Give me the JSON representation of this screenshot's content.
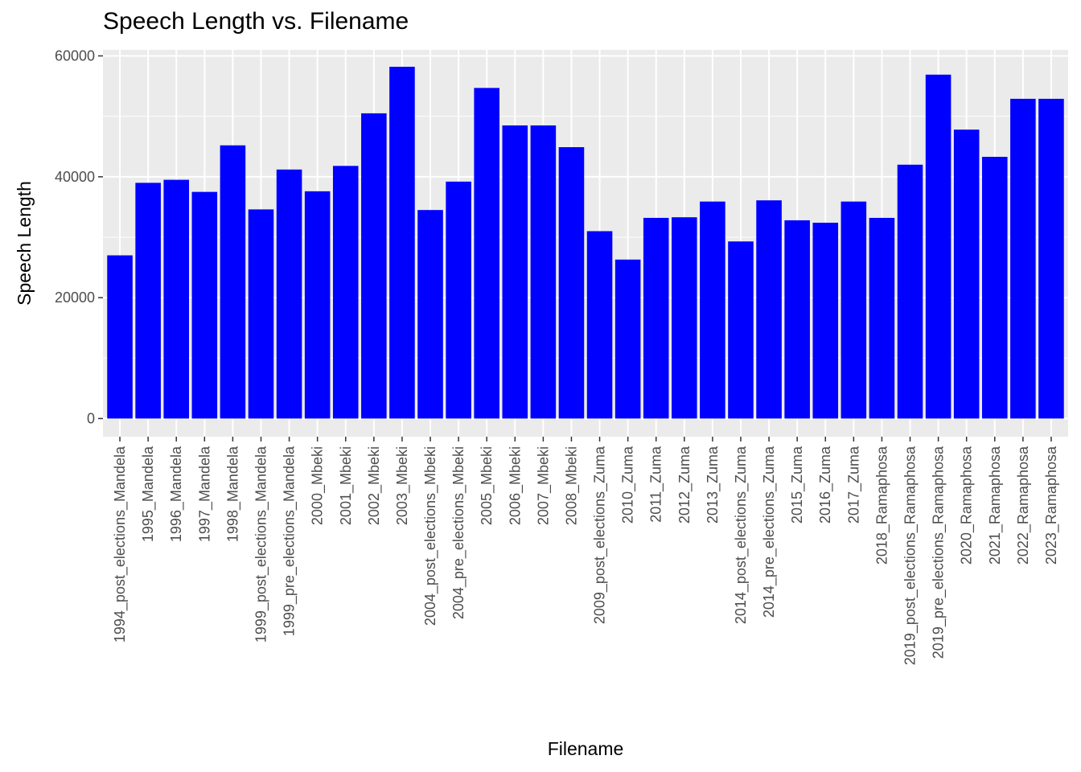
{
  "chart_data": {
    "type": "bar",
    "title": "Speech Length vs. Filename",
    "xlabel": "Filename",
    "ylabel": "Speech Length",
    "ylim": [
      -3000,
      61000
    ],
    "yticks": [
      0,
      20000,
      40000,
      60000
    ],
    "ytick_labels": [
      "0",
      "20000",
      "40000",
      "60000"
    ],
    "grid": true,
    "legend": "none",
    "bar_color": "#0000ff",
    "panel_color": "#ebebeb",
    "grid_color": "#ffffff",
    "categories": [
      "1994_post_elections_Mandela",
      "1995_Mandela",
      "1996_Mandela",
      "1997_Mandela",
      "1998_Mandela",
      "1999_post_elections_Mandela",
      "1999_pre_elections_Mandela",
      "2000_Mbeki",
      "2001_Mbeki",
      "2002_Mbeki",
      "2003_Mbeki",
      "2004_post_elections_Mbeki",
      "2004_pre_elections_Mbeki",
      "2005_Mbeki",
      "2006_Mbeki",
      "2007_Mbeki",
      "2008_Mbeki",
      "2009_post_elections_Zuma",
      "2010_Zuma",
      "2011_Zuma",
      "2012_Zuma",
      "2013_Zuma",
      "2014_post_elections_Zuma",
      "2014_pre_elections_Zuma",
      "2015_Zuma",
      "2016_Zuma",
      "2017_Zuma",
      "2018_Ramaphosa",
      "2019_post_elections_Ramaphosa",
      "2019_pre_elections_Ramaphosa",
      "2020_Ramaphosa",
      "2021_Ramaphosa",
      "2022_Ramaphosa",
      "2023_Ramaphosa"
    ],
    "values": [
      27000,
      39000,
      39500,
      37500,
      45200,
      34600,
      41200,
      37600,
      41800,
      50500,
      58200,
      34500,
      39200,
      54700,
      48500,
      48500,
      44900,
      31000,
      26300,
      33200,
      33300,
      35900,
      29300,
      36100,
      32800,
      32400,
      35900,
      33200,
      42000,
      56900,
      47800,
      43300,
      52900,
      52900
    ]
  }
}
